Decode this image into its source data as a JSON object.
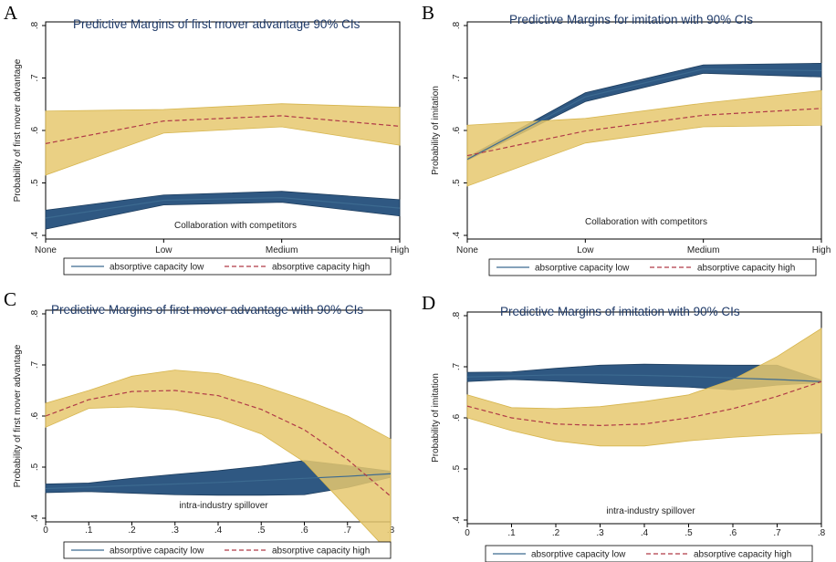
{
  "chart_data": [
    {
      "id": "A",
      "panel_label": "A",
      "type": "line",
      "title": "Predictive Margins of first mover advantage 90% CIs",
      "xlabel": "Collaboration with competitors",
      "ylabel": "Probability of first mover advantage",
      "x_categorical": true,
      "x": [
        0,
        1,
        2,
        3
      ],
      "x_tick_labels": [
        "None",
        "Low",
        "Medium",
        "High"
      ],
      "ylim": [
        0.4,
        0.8
      ],
      "y_ticks": [
        0.4,
        0.5,
        0.6,
        0.7,
        0.8
      ],
      "y_tick_labels": [
        ".4",
        ".5",
        ".6",
        ".7",
        ".8"
      ],
      "legend_position": "bottom",
      "series": [
        {
          "name": "absorptive capacity low",
          "style": "solid",
          "color": "#2b557f",
          "band_color": "#2b557f",
          "values": [
            0.433,
            0.467,
            0.472,
            0.452
          ],
          "lower": [
            0.412,
            0.458,
            0.463,
            0.437
          ],
          "upper": [
            0.448,
            0.477,
            0.484,
            0.468
          ]
        },
        {
          "name": "absorptive capacity high",
          "style": "dashed",
          "color": "#b03a48",
          "band_color": "#e6c86e",
          "values": [
            0.575,
            0.618,
            0.628,
            0.608
          ],
          "lower": [
            0.515,
            0.595,
            0.607,
            0.572
          ],
          "upper": [
            0.637,
            0.64,
            0.651,
            0.644
          ]
        }
      ]
    },
    {
      "id": "B",
      "panel_label": "B",
      "type": "line",
      "title": "Predictive Margins for imitation with 90% CIs",
      "xlabel": "Collaboration with competitors",
      "ylabel": "Probability of imitation",
      "x_categorical": true,
      "x": [
        0,
        1,
        2,
        3
      ],
      "x_tick_labels": [
        "None",
        "Low",
        "Medium",
        "High"
      ],
      "ylim": [
        0.4,
        0.8
      ],
      "y_ticks": [
        0.4,
        0.5,
        0.6,
        0.7,
        0.8
      ],
      "y_tick_labels": [
        ".4",
        ".5",
        ".6",
        ".7",
        ".8"
      ],
      "legend_position": "bottom",
      "series": [
        {
          "name": "absorptive capacity low",
          "style": "solid",
          "color": "#2b557f",
          "band_color": "#2b557f",
          "values": [
            0.545,
            0.664,
            0.717,
            0.714
          ],
          "lower": [
            0.543,
            0.655,
            0.709,
            0.702
          ],
          "upper": [
            0.549,
            0.672,
            0.725,
            0.728
          ]
        },
        {
          "name": "absorptive capacity high",
          "style": "dashed",
          "color": "#b03a48",
          "band_color": "#e6c86e",
          "values": [
            0.552,
            0.599,
            0.629,
            0.642
          ],
          "lower": [
            0.494,
            0.576,
            0.607,
            0.61
          ],
          "upper": [
            0.61,
            0.623,
            0.652,
            0.676
          ]
        }
      ]
    },
    {
      "id": "C",
      "panel_label": "C",
      "type": "line",
      "title": "Predictive Margins of first mover advantage with 90% CIs",
      "xlabel": "intra-industry spillover",
      "ylabel": "Probability of first mover advantage",
      "x_categorical": false,
      "x": [
        0,
        0.1,
        0.2,
        0.3,
        0.4,
        0.5,
        0.6,
        0.7,
        0.8
      ],
      "x_ticks": [
        0,
        0.1,
        0.2,
        0.3,
        0.4,
        0.5,
        0.6,
        0.7,
        0.8
      ],
      "x_tick_labels": [
        "0",
        ".1",
        ".2",
        ".3",
        ".4",
        ".5",
        ".6",
        ".7",
        ".8"
      ],
      "xlim": [
        0,
        0.8
      ],
      "ylim": [
        0.4,
        0.8
      ],
      "y_ticks": [
        0.4,
        0.5,
        0.6,
        0.7,
        0.8
      ],
      "y_tick_labels": [
        ".4",
        ".5",
        ".6",
        ".7",
        ".8"
      ],
      "legend_position": "bottom",
      "series": [
        {
          "name": "absorptive capacity low",
          "style": "solid",
          "color": "#2b557f",
          "band_color": "#2b557f",
          "values": [
            0.458,
            0.461,
            0.464,
            0.467,
            0.47,
            0.474,
            0.478,
            0.482,
            0.487
          ],
          "lower": [
            0.45,
            0.452,
            0.449,
            0.446,
            0.445,
            0.445,
            0.446,
            0.46,
            0.48
          ],
          "upper": [
            0.467,
            0.469,
            0.478,
            0.486,
            0.493,
            0.502,
            0.513,
            0.503,
            0.492
          ]
        },
        {
          "name": "absorptive capacity high",
          "style": "dashed",
          "color": "#b03a48",
          "band_color": "#e6c86e",
          "values": [
            0.6,
            0.632,
            0.648,
            0.65,
            0.64,
            0.613,
            0.573,
            0.515,
            0.443
          ],
          "lower": [
            0.578,
            0.615,
            0.618,
            0.612,
            0.595,
            0.565,
            0.51,
            0.42,
            0.33
          ],
          "upper": [
            0.625,
            0.65,
            0.678,
            0.69,
            0.683,
            0.66,
            0.632,
            0.6,
            0.555
          ]
        }
      ]
    },
    {
      "id": "D",
      "panel_label": "D",
      "type": "line",
      "title": "Predictive Margins of imitation with 90% CIs",
      "xlabel": "intra-industry spillover",
      "ylabel": "Probability of imitation",
      "x_categorical": false,
      "x": [
        0,
        0.1,
        0.2,
        0.3,
        0.4,
        0.5,
        0.6,
        0.7,
        0.8
      ],
      "x_ticks": [
        0,
        0.1,
        0.2,
        0.3,
        0.4,
        0.5,
        0.6,
        0.7,
        0.8
      ],
      "x_tick_labels": [
        "0",
        ".1",
        ".2",
        ".3",
        ".4",
        ".5",
        ".6",
        ".7",
        ".8"
      ],
      "xlim": [
        0,
        0.8
      ],
      "ylim": [
        0.4,
        0.8
      ],
      "y_ticks": [
        0.4,
        0.5,
        0.6,
        0.7,
        0.8
      ],
      "y_tick_labels": [
        ".4",
        ".5",
        ".6",
        ".7",
        ".8"
      ],
      "legend_position": "bottom",
      "series": [
        {
          "name": "absorptive capacity low",
          "style": "solid",
          "color": "#2b557f",
          "band_color": "#2b557f",
          "values": [
            0.68,
            0.682,
            0.684,
            0.684,
            0.683,
            0.681,
            0.678,
            0.675,
            0.671
          ],
          "lower": [
            0.671,
            0.675,
            0.672,
            0.667,
            0.663,
            0.66,
            0.655,
            0.664,
            0.669
          ],
          "upper": [
            0.689,
            0.69,
            0.697,
            0.703,
            0.705,
            0.704,
            0.703,
            0.703,
            0.674
          ]
        },
        {
          "name": "absorptive capacity high",
          "style": "dashed",
          "color": "#b03a48",
          "band_color": "#e6c86e",
          "values": [
            0.623,
            0.6,
            0.588,
            0.585,
            0.588,
            0.6,
            0.618,
            0.642,
            0.671
          ],
          "lower": [
            0.6,
            0.575,
            0.555,
            0.545,
            0.545,
            0.555,
            0.562,
            0.567,
            0.57
          ],
          "upper": [
            0.645,
            0.62,
            0.618,
            0.622,
            0.632,
            0.645,
            0.675,
            0.72,
            0.775
          ]
        }
      ]
    }
  ]
}
